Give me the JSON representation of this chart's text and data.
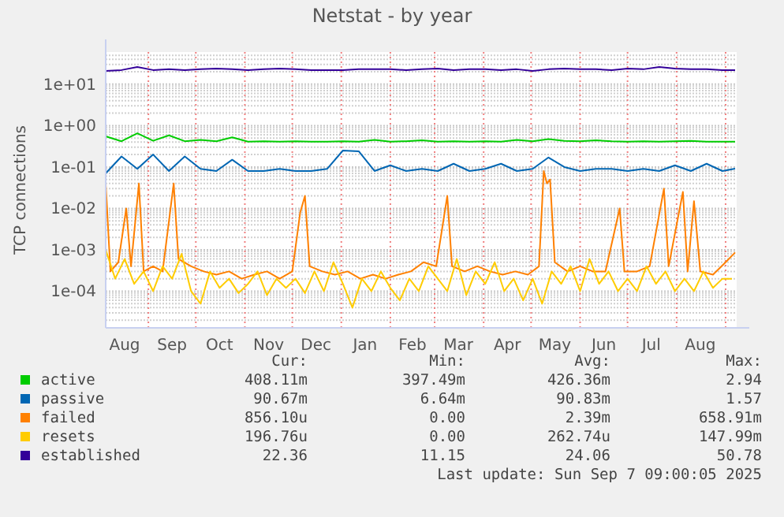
{
  "chart_data": {
    "type": "line",
    "title": "Netstat - by year",
    "ylabel": "TCP connections",
    "log": "y",
    "grid": true,
    "legend": "bottom",
    "xlim": [
      "2024-08-05",
      "2025-09-08"
    ],
    "ylim": [
      1.3e-05,
      60
    ],
    "xticks": [
      {
        "value": "2024-08-17",
        "label": "Aug"
      },
      {
        "value": "2024-09-01",
        "label": null
      },
      {
        "value": "2024-09-16",
        "label": "Sep"
      },
      {
        "value": "2024-10-01",
        "label": null
      },
      {
        "value": "2024-10-16",
        "label": "Oct"
      },
      {
        "value": "2024-11-01",
        "label": null
      },
      {
        "value": "2024-11-16",
        "label": "Nov"
      },
      {
        "value": "2024-12-01",
        "label": null
      },
      {
        "value": "2024-12-16",
        "label": "Dec"
      },
      {
        "value": "2025-01-01",
        "label": null
      },
      {
        "value": "2025-01-16",
        "label": "Jan"
      },
      {
        "value": "2025-02-01",
        "label": null
      },
      {
        "value": "2025-02-15",
        "label": "Feb"
      },
      {
        "value": "2025-03-01",
        "label": null
      },
      {
        "value": "2025-03-16",
        "label": "Mar"
      },
      {
        "value": "2025-04-01",
        "label": null
      },
      {
        "value": "2025-04-16",
        "label": "Apr"
      },
      {
        "value": "2025-05-01",
        "label": null
      },
      {
        "value": "2025-05-16",
        "label": "May"
      },
      {
        "value": "2025-06-01",
        "label": null
      },
      {
        "value": "2025-06-16",
        "label": "Jun"
      },
      {
        "value": "2025-07-01",
        "label": null
      },
      {
        "value": "2025-07-16",
        "label": "Jul"
      },
      {
        "value": "2025-08-01",
        "label": null
      },
      {
        "value": "2025-08-16",
        "label": "Aug"
      },
      {
        "value": "2025-09-01",
        "label": null
      }
    ],
    "yticks": [
      {
        "value": 2e-05,
        "label": null
      },
      {
        "value": 3e-05,
        "label": null
      },
      {
        "value": 4e-05,
        "label": null
      },
      {
        "value": 5e-05,
        "label": null
      },
      {
        "value": 6e-05,
        "label": null
      },
      {
        "value": 7e-05,
        "label": null
      },
      {
        "value": 8e-05,
        "label": null
      },
      {
        "value": 9e-05,
        "label": null
      },
      {
        "value": 0.0001,
        "label": "1e-04"
      },
      {
        "value": 0.0002,
        "label": null
      },
      {
        "value": 0.0003,
        "label": null
      },
      {
        "value": 0.0004,
        "label": null
      },
      {
        "value": 0.0005,
        "label": null
      },
      {
        "value": 0.0006,
        "label": null
      },
      {
        "value": 0.0007,
        "label": null
      },
      {
        "value": 0.0008,
        "label": null
      },
      {
        "value": 0.0009,
        "label": null
      },
      {
        "value": 0.001,
        "label": "1e-03"
      },
      {
        "value": 0.002,
        "label": null
      },
      {
        "value": 0.003,
        "label": null
      },
      {
        "value": 0.004,
        "label": null
      },
      {
        "value": 0.005,
        "label": null
      },
      {
        "value": 0.006,
        "label": null
      },
      {
        "value": 0.007,
        "label": null
      },
      {
        "value": 0.008,
        "label": null
      },
      {
        "value": 0.009,
        "label": null
      },
      {
        "value": 0.01,
        "label": "1e-02"
      },
      {
        "value": 0.02,
        "label": null
      },
      {
        "value": 0.03,
        "label": null
      },
      {
        "value": 0.04,
        "label": null
      },
      {
        "value": 0.05,
        "label": null
      },
      {
        "value": 0.06,
        "label": null
      },
      {
        "value": 0.07,
        "label": null
      },
      {
        "value": 0.08,
        "label": null
      },
      {
        "value": 0.09,
        "label": null
      },
      {
        "value": 0.1,
        "label": "1e-01"
      },
      {
        "value": 0.2,
        "label": null
      },
      {
        "value": 0.3,
        "label": null
      },
      {
        "value": 0.4,
        "label": null
      },
      {
        "value": 0.5,
        "label": null
      },
      {
        "value": 0.6,
        "label": null
      },
      {
        "value": 0.7,
        "label": null
      },
      {
        "value": 0.8,
        "label": null
      },
      {
        "value": 0.9,
        "label": null
      },
      {
        "value": 1,
        "label": "1e+00"
      },
      {
        "value": 2,
        "label": null
      },
      {
        "value": 3,
        "label": null
      },
      {
        "value": 4,
        "label": null
      },
      {
        "value": 5,
        "label": null
      },
      {
        "value": 6,
        "label": null
      },
      {
        "value": 7,
        "label": null
      },
      {
        "value": 8,
        "label": null
      },
      {
        "value": 9,
        "label": null
      },
      {
        "value": 10,
        "label": "1e+01"
      },
      {
        "value": 20,
        "label": null
      },
      {
        "value": 30,
        "label": null
      },
      {
        "value": 40,
        "label": null
      },
      {
        "value": 50,
        "label": null
      }
    ],
    "series": [
      {
        "name": "active",
        "color": "#00cc00",
        "x": [
          "2024-08-05",
          "2024-08-15",
          "2024-08-25",
          "2024-09-04",
          "2024-09-14",
          "2024-09-24",
          "2024-10-04",
          "2024-10-14",
          "2024-10-24",
          "2024-11-03",
          "2024-11-13",
          "2024-11-23",
          "2024-12-03",
          "2024-12-13",
          "2024-12-23",
          "2025-01-02",
          "2025-01-12",
          "2025-01-22",
          "2025-02-01",
          "2025-02-11",
          "2025-02-21",
          "2025-03-03",
          "2025-03-13",
          "2025-03-23",
          "2025-04-02",
          "2025-04-12",
          "2025-04-22",
          "2025-05-02",
          "2025-05-12",
          "2025-05-22",
          "2025-06-01",
          "2025-06-11",
          "2025-06-21",
          "2025-07-01",
          "2025-07-11",
          "2025-07-21",
          "2025-07-31",
          "2025-08-10",
          "2025-08-20",
          "2025-08-30",
          "2025-09-07"
        ],
        "values": [
          0.55,
          0.42,
          0.65,
          0.43,
          0.58,
          0.42,
          0.45,
          0.42,
          0.52,
          0.41,
          0.42,
          0.41,
          0.42,
          0.41,
          0.41,
          0.42,
          0.41,
          0.45,
          0.41,
          0.42,
          0.44,
          0.41,
          0.42,
          0.41,
          0.42,
          0.41,
          0.45,
          0.42,
          0.47,
          0.43,
          0.42,
          0.44,
          0.42,
          0.41,
          0.42,
          0.41,
          0.42,
          0.43,
          0.41,
          0.41,
          0.408
        ]
      },
      {
        "name": "passive",
        "color": "#0066b3",
        "x": [
          "2024-08-05",
          "2024-08-15",
          "2024-08-25",
          "2024-09-04",
          "2024-09-14",
          "2024-09-24",
          "2024-10-04",
          "2024-10-14",
          "2024-10-24",
          "2024-11-03",
          "2024-11-13",
          "2024-11-23",
          "2024-12-03",
          "2024-12-13",
          "2024-12-23",
          "2025-01-02",
          "2025-01-12",
          "2025-01-22",
          "2025-02-01",
          "2025-02-11",
          "2025-02-21",
          "2025-03-03",
          "2025-03-13",
          "2025-03-23",
          "2025-04-02",
          "2025-04-12",
          "2025-04-22",
          "2025-05-02",
          "2025-05-12",
          "2025-05-22",
          "2025-06-01",
          "2025-06-11",
          "2025-06-21",
          "2025-07-01",
          "2025-07-11",
          "2025-07-21",
          "2025-07-31",
          "2025-08-10",
          "2025-08-20",
          "2025-08-30",
          "2025-09-07"
        ],
        "values": [
          0.07,
          0.18,
          0.09,
          0.2,
          0.08,
          0.18,
          0.09,
          0.08,
          0.15,
          0.08,
          0.08,
          0.09,
          0.08,
          0.08,
          0.09,
          0.25,
          0.24,
          0.08,
          0.11,
          0.08,
          0.09,
          0.08,
          0.12,
          0.08,
          0.09,
          0.12,
          0.08,
          0.09,
          0.17,
          0.1,
          0.08,
          0.09,
          0.09,
          0.08,
          0.09,
          0.08,
          0.11,
          0.08,
          0.12,
          0.08,
          0.091
        ]
      },
      {
        "name": "failed",
        "color": "#ff8000",
        "x": [
          "2024-08-05",
          "2024-08-08",
          "2024-08-13",
          "2024-08-18",
          "2024-08-21",
          "2024-08-26",
          "2024-08-29",
          "2024-09-04",
          "2024-09-10",
          "2024-09-17",
          "2024-09-20",
          "2024-09-28",
          "2024-10-06",
          "2024-10-14",
          "2024-10-22",
          "2024-10-30",
          "2024-11-07",
          "2024-11-15",
          "2024-11-23",
          "2024-12-01",
          "2024-12-06",
          "2024-12-09",
          "2024-12-12",
          "2024-12-20",
          "2024-12-28",
          "2025-01-05",
          "2025-01-13",
          "2025-01-21",
          "2025-01-29",
          "2025-02-06",
          "2025-02-14",
          "2025-02-22",
          "2025-03-02",
          "2025-03-09",
          "2025-03-12",
          "2025-03-20",
          "2025-03-28",
          "2025-04-05",
          "2025-04-13",
          "2025-04-21",
          "2025-04-29",
          "2025-05-06",
          "2025-05-09",
          "2025-05-11",
          "2025-05-13",
          "2025-05-16",
          "2025-05-24",
          "2025-06-01",
          "2025-06-09",
          "2025-06-17",
          "2025-06-26",
          "2025-06-29",
          "2025-07-07",
          "2025-07-15",
          "2025-07-24",
          "2025-07-27",
          "2025-08-05",
          "2025-08-08",
          "2025-08-12",
          "2025-08-16",
          "2025-08-24",
          "2025-09-01",
          "2025-09-07"
        ],
        "values": [
          0.04,
          0.0003,
          0.0005,
          0.01,
          0.0004,
          0.04,
          0.0003,
          0.0004,
          0.0003,
          0.04,
          0.0006,
          0.0004,
          0.0003,
          0.00025,
          0.0003,
          0.0002,
          0.00025,
          0.0003,
          0.0002,
          0.0003,
          0.008,
          0.02,
          0.0004,
          0.0003,
          0.00025,
          0.0003,
          0.0002,
          0.00025,
          0.0002,
          0.00025,
          0.0003,
          0.0005,
          0.0004,
          0.02,
          0.0004,
          0.0003,
          0.0004,
          0.0003,
          0.00025,
          0.0003,
          0.00025,
          0.0004,
          0.08,
          0.04,
          0.05,
          0.0005,
          0.0003,
          0.0004,
          0.0003,
          0.0003,
          0.01,
          0.0003,
          0.0003,
          0.0004,
          0.03,
          0.0004,
          0.025,
          0.0003,
          0.015,
          0.0003,
          0.00025,
          0.0005,
          0.00086
        ]
      },
      {
        "name": "resets",
        "color": "#ffcc00",
        "x": [
          "2024-08-05",
          "2024-08-11",
          "2024-08-17",
          "2024-08-23",
          "2024-08-29",
          "2024-09-04",
          "2024-09-10",
          "2024-09-16",
          "2024-09-22",
          "2024-09-28",
          "2024-10-04",
          "2024-10-10",
          "2024-10-16",
          "2024-10-22",
          "2024-10-28",
          "2024-11-03",
          "2024-11-09",
          "2024-11-15",
          "2024-11-21",
          "2024-11-27",
          "2024-12-03",
          "2024-12-09",
          "2024-12-15",
          "2024-12-21",
          "2024-12-27",
          "2025-01-02",
          "2025-01-08",
          "2025-01-14",
          "2025-01-20",
          "2025-01-26",
          "2025-02-01",
          "2025-02-07",
          "2025-02-13",
          "2025-02-19",
          "2025-02-25",
          "2025-03-03",
          "2025-03-09",
          "2025-03-15",
          "2025-03-21",
          "2025-03-27",
          "2025-04-02",
          "2025-04-08",
          "2025-04-14",
          "2025-04-20",
          "2025-04-26",
          "2025-05-02",
          "2025-05-08",
          "2025-05-14",
          "2025-05-20",
          "2025-05-26",
          "2025-06-01",
          "2025-06-07",
          "2025-06-13",
          "2025-06-19",
          "2025-06-25",
          "2025-07-01",
          "2025-07-07",
          "2025-07-13",
          "2025-07-19",
          "2025-07-25",
          "2025-07-31",
          "2025-08-06",
          "2025-08-12",
          "2025-08-18",
          "2025-08-24",
          "2025-08-30",
          "2025-09-05"
        ],
        "values": [
          0.001,
          0.0002,
          0.0006,
          0.00015,
          0.0003,
          0.0001,
          0.0004,
          0.0002,
          0.0008,
          0.0001,
          5e-05,
          0.0003,
          0.00012,
          0.0002,
          9e-05,
          0.00015,
          0.0003,
          8e-05,
          0.0002,
          0.00012,
          0.0002,
          9e-05,
          0.0003,
          0.0001,
          0.0005,
          0.00015,
          4e-05,
          0.0002,
          0.0001,
          0.0003,
          0.00012,
          6e-05,
          0.0002,
          0.0001,
          0.0004,
          0.0002,
          0.0001,
          0.0006,
          8e-05,
          0.0003,
          0.00015,
          0.0005,
          0.0001,
          0.0002,
          6e-05,
          0.0002,
          5e-05,
          0.0003,
          0.00015,
          0.0004,
          0.0001,
          0.0006,
          0.00015,
          0.0003,
          0.0001,
          0.0002,
          0.0001,
          0.0004,
          0.00015,
          0.0003,
          0.0001,
          0.0002,
          0.0001,
          0.0003,
          0.00012,
          0.0002,
          0.0002
        ]
      },
      {
        "name": "established",
        "color": "#330099",
        "x": [
          "2024-08-05",
          "2024-08-15",
          "2024-08-25",
          "2024-09-04",
          "2024-09-14",
          "2024-09-24",
          "2024-10-04",
          "2024-10-14",
          "2024-10-24",
          "2024-11-03",
          "2024-11-13",
          "2024-11-23",
          "2024-12-03",
          "2024-12-13",
          "2024-12-23",
          "2025-01-02",
          "2025-01-12",
          "2025-01-22",
          "2025-02-01",
          "2025-02-11",
          "2025-02-21",
          "2025-03-03",
          "2025-03-13",
          "2025-03-23",
          "2025-04-02",
          "2025-04-12",
          "2025-04-22",
          "2025-05-02",
          "2025-05-12",
          "2025-05-22",
          "2025-06-01",
          "2025-06-11",
          "2025-06-21",
          "2025-07-01",
          "2025-07-11",
          "2025-07-21",
          "2025-07-31",
          "2025-08-10",
          "2025-08-20",
          "2025-08-30",
          "2025-09-07"
        ],
        "values": [
          21,
          22,
          26,
          22,
          23,
          22,
          23,
          24,
          23,
          22,
          23,
          24,
          23,
          22,
          22,
          22,
          23,
          23,
          23,
          22,
          23,
          24,
          22,
          23,
          23,
          22,
          23,
          21,
          23,
          24,
          23,
          23,
          22,
          24,
          23,
          26,
          24,
          23,
          23,
          22,
          22
        ]
      }
    ],
    "annotations": [
      "Cur:",
      "Min:",
      "Avg:",
      "Max:",
      "408.11m",
      "397.49m",
      "426.36m",
      "2.94",
      "90.67m",
      "6.64m",
      "90.83m",
      "1.57",
      "856.10u",
      "0.00",
      "2.39m",
      "658.91m",
      "196.76u",
      "0.00",
      "262.74u",
      "147.99m",
      "22.36",
      "11.15",
      "24.06",
      "50.78",
      "Last update: Sun Sep  7 09:00:05 2025"
    ]
  }
}
